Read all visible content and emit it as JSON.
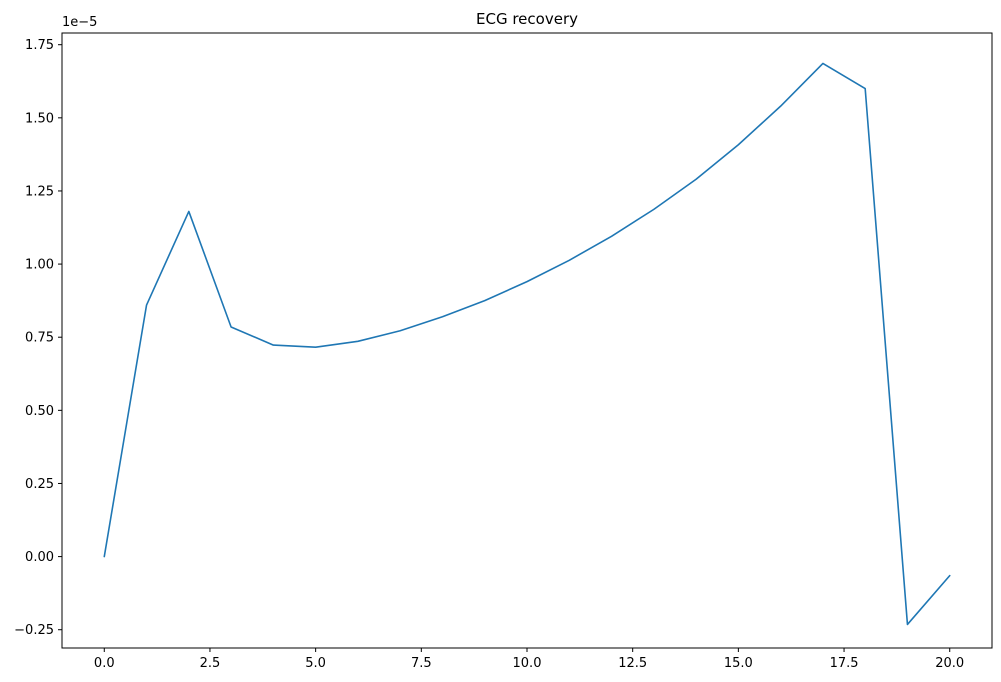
{
  "chart_data": {
    "type": "line",
    "title": "ECG recovery",
    "xlabel": "",
    "ylabel": "",
    "y_offset_label": "1e−5",
    "xlim": [
      -1.0,
      21.0
    ],
    "ylim": [
      -0.3125,
      1.79
    ],
    "x_ticks": [
      0,
      2.5,
      5,
      7.5,
      10,
      12.5,
      15,
      17.5,
      20
    ],
    "x_tick_labels": [
      "0.0",
      "2.5",
      "5.0",
      "7.5",
      "10.0",
      "12.5",
      "15.0",
      "17.5",
      "20.0"
    ],
    "y_ticks": [
      -0.25,
      0,
      0.25,
      0.5,
      0.75,
      1.0,
      1.25,
      1.5,
      1.75
    ],
    "y_tick_labels": [
      "−0.25",
      "0.00",
      "0.25",
      "0.50",
      "0.75",
      "1.00",
      "1.25",
      "1.50",
      "1.75"
    ],
    "grid": false,
    "series": [
      {
        "color": "#1f77b4",
        "x": [
          0,
          1,
          2,
          3,
          4,
          5,
          6,
          7,
          8,
          9,
          10,
          11,
          12,
          13,
          14,
          15,
          16,
          17,
          18,
          19,
          20
        ],
        "y": [
          0.0,
          0.86,
          1.18,
          0.785,
          0.723,
          0.716,
          0.736,
          0.772,
          0.82,
          0.875,
          0.94,
          1.013,
          1.095,
          1.187,
          1.29,
          1.408,
          1.54,
          1.686,
          1.6,
          -0.232,
          -0.065
        ]
      }
    ]
  }
}
